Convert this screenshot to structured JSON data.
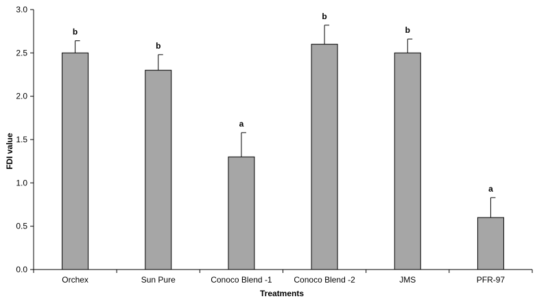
{
  "chart_data": {
    "type": "bar",
    "xlabel": "Treatments",
    "ylabel": "FDI value",
    "ylim": [
      0,
      3.0
    ],
    "yticks": [
      "0.0",
      "0.5",
      "1.0",
      "1.5",
      "2.0",
      "2.5",
      "3.0"
    ],
    "grid": false,
    "legend": "none",
    "bar_color": "#a6a6a6",
    "categories": [
      "Orchex",
      "Sun Pure",
      "Conoco Blend -1",
      "Conoco Blend -2",
      "JMS",
      "PFR-97"
    ],
    "values": [
      2.5,
      2.3,
      1.3,
      2.6,
      2.5,
      0.6
    ],
    "error_upper": [
      0.14,
      0.18,
      0.28,
      0.22,
      0.16,
      0.23
    ],
    "significance": [
      "b",
      "b",
      "a",
      "b",
      "b",
      "a"
    ]
  }
}
